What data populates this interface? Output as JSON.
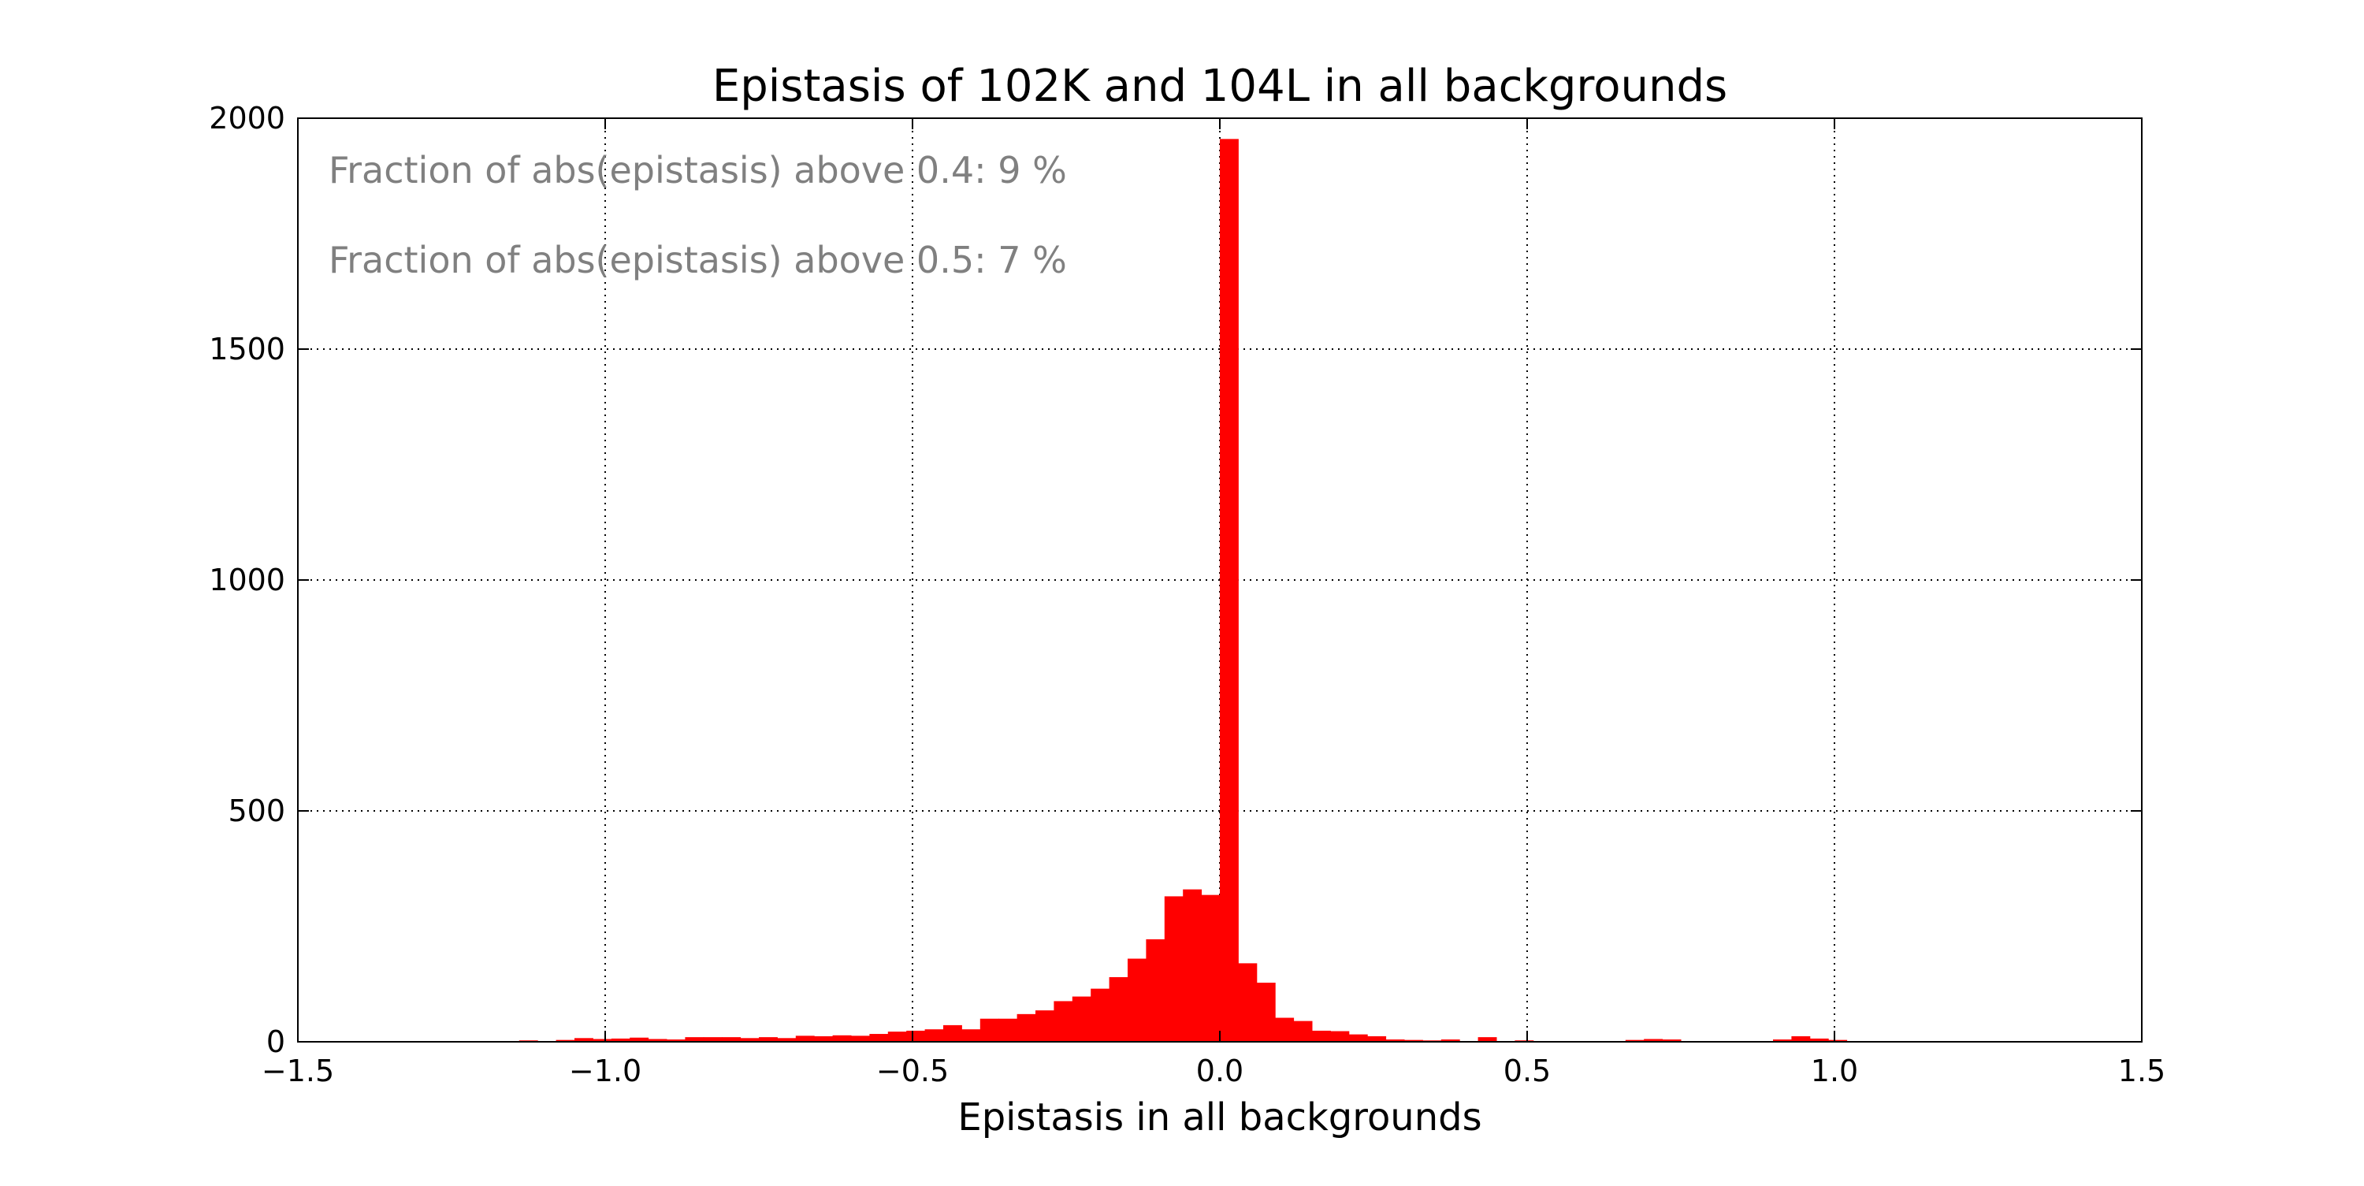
{
  "chart_data": {
    "type": "bar",
    "title": "Epistasis of 102K and 104L in all backgrounds",
    "xlabel": "Epistasis in all backgrounds",
    "ylabel": "",
    "xlim": [
      -1.5,
      1.5
    ],
    "ylim": [
      0,
      2000
    ],
    "xticks": [
      "−1.5",
      "−1.0",
      "−0.5",
      "0.0",
      "0.5",
      "1.0",
      "1.5"
    ],
    "xtick_values": [
      -1.5,
      -1.0,
      -0.5,
      0.0,
      0.5,
      1.0,
      1.5
    ],
    "yticks": [
      "0",
      "500",
      "1000",
      "1500",
      "2000"
    ],
    "ytick_values": [
      0,
      500,
      1000,
      1500,
      2000
    ],
    "grid": true,
    "bar_color": "#ff0000",
    "bin_width": 0.03,
    "bins": [
      {
        "x0": -1.14,
        "count": 3
      },
      {
        "x0": -1.08,
        "count": 4
      },
      {
        "x0": -1.05,
        "count": 8
      },
      {
        "x0": -1.02,
        "count": 6
      },
      {
        "x0": -0.99,
        "count": 7
      },
      {
        "x0": -0.96,
        "count": 9
      },
      {
        "x0": -0.93,
        "count": 6
      },
      {
        "x0": -0.9,
        "count": 5
      },
      {
        "x0": -0.87,
        "count": 10
      },
      {
        "x0": -0.84,
        "count": 10
      },
      {
        "x0": -0.81,
        "count": 10
      },
      {
        "x0": -0.78,
        "count": 8
      },
      {
        "x0": -0.75,
        "count": 10
      },
      {
        "x0": -0.72,
        "count": 8
      },
      {
        "x0": -0.69,
        "count": 13
      },
      {
        "x0": -0.66,
        "count": 12
      },
      {
        "x0": -0.63,
        "count": 14
      },
      {
        "x0": -0.6,
        "count": 13
      },
      {
        "x0": -0.57,
        "count": 17
      },
      {
        "x0": -0.54,
        "count": 22
      },
      {
        "x0": -0.51,
        "count": 24
      },
      {
        "x0": -0.48,
        "count": 27
      },
      {
        "x0": -0.45,
        "count": 36
      },
      {
        "x0": -0.42,
        "count": 27
      },
      {
        "x0": -0.39,
        "count": 50
      },
      {
        "x0": -0.36,
        "count": 50
      },
      {
        "x0": -0.33,
        "count": 60
      },
      {
        "x0": -0.3,
        "count": 68
      },
      {
        "x0": -0.27,
        "count": 88
      },
      {
        "x0": -0.24,
        "count": 98
      },
      {
        "x0": -0.21,
        "count": 115
      },
      {
        "x0": -0.18,
        "count": 140
      },
      {
        "x0": -0.15,
        "count": 180
      },
      {
        "x0": -0.12,
        "count": 222
      },
      {
        "x0": -0.09,
        "count": 315
      },
      {
        "x0": -0.06,
        "count": 330
      },
      {
        "x0": -0.03,
        "count": 318
      },
      {
        "x0": 0.0,
        "count": 1955
      },
      {
        "x0": 0.03,
        "count": 170
      },
      {
        "x0": 0.06,
        "count": 128
      },
      {
        "x0": 0.09,
        "count": 52
      },
      {
        "x0": 0.12,
        "count": 45
      },
      {
        "x0": 0.15,
        "count": 24
      },
      {
        "x0": 0.18,
        "count": 23
      },
      {
        "x0": 0.21,
        "count": 16
      },
      {
        "x0": 0.24,
        "count": 12
      },
      {
        "x0": 0.27,
        "count": 5
      },
      {
        "x0": 0.3,
        "count": 4
      },
      {
        "x0": 0.33,
        "count": 3
      },
      {
        "x0": 0.36,
        "count": 5
      },
      {
        "x0": 0.42,
        "count": 10
      },
      {
        "x0": 0.48,
        "count": 3
      },
      {
        "x0": 0.66,
        "count": 4
      },
      {
        "x0": 0.69,
        "count": 6
      },
      {
        "x0": 0.72,
        "count": 5
      },
      {
        "x0": 0.9,
        "count": 5
      },
      {
        "x0": 0.93,
        "count": 12
      },
      {
        "x0": 0.96,
        "count": 7
      },
      {
        "x0": 0.99,
        "count": 4
      }
    ],
    "annotations": [
      "Fraction of abs(epistasis) above 0.4: 9 %",
      "Fraction of abs(epistasis) above 0.5: 7 %"
    ]
  }
}
